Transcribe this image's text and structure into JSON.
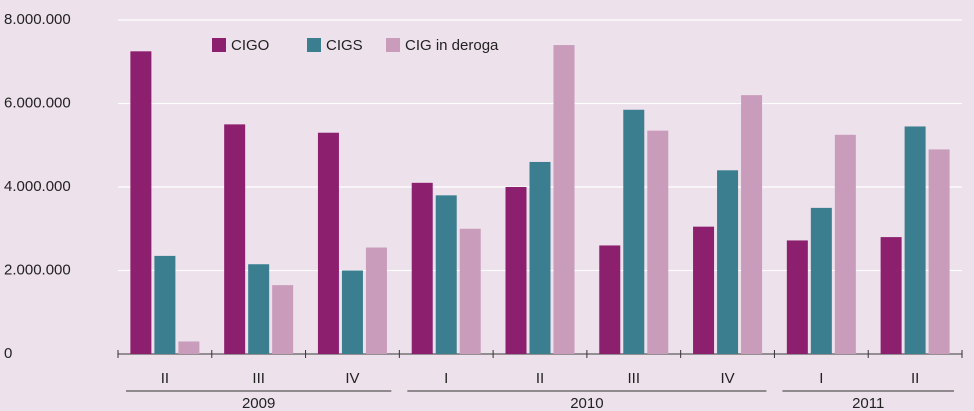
{
  "chart_data": {
    "type": "bar",
    "groups": [
      {
        "name": "2009",
        "categories": [
          "II",
          "III",
          "IV"
        ]
      },
      {
        "name": "2010",
        "categories": [
          "I",
          "II",
          "III",
          "IV"
        ]
      },
      {
        "name": "2011",
        "categories": [
          "I",
          "II"
        ]
      }
    ],
    "series": [
      {
        "name": "CIGO",
        "color": "#8c1f6e",
        "values": [
          7250000,
          5500000,
          5300000,
          4100000,
          4000000,
          2600000,
          3050000,
          2720000,
          2800000
        ]
      },
      {
        "name": "CIGS",
        "color": "#3b7e90",
        "values": [
          2350000,
          2150000,
          2000000,
          3800000,
          4600000,
          5850000,
          4400000,
          3500000,
          5450000
        ]
      },
      {
        "name": "CIG in deroga",
        "color": "#c99cbc",
        "values": [
          300000,
          1650000,
          2550000,
          3000000,
          7400000,
          5350000,
          6200000,
          5250000,
          4900000
        ]
      }
    ],
    "ylim": [
      0,
      8000000
    ],
    "yticks": [
      0,
      {
        "value": 2000000,
        "label": "2.000.000"
      },
      {
        "value": 4000000,
        "label": "4.000.000"
      },
      {
        "value": 6000000,
        "label": "6.000.000"
      },
      {
        "value": 8000000,
        "label": "8.000.000"
      }
    ],
    "grid": true,
    "legend": "top-left"
  }
}
